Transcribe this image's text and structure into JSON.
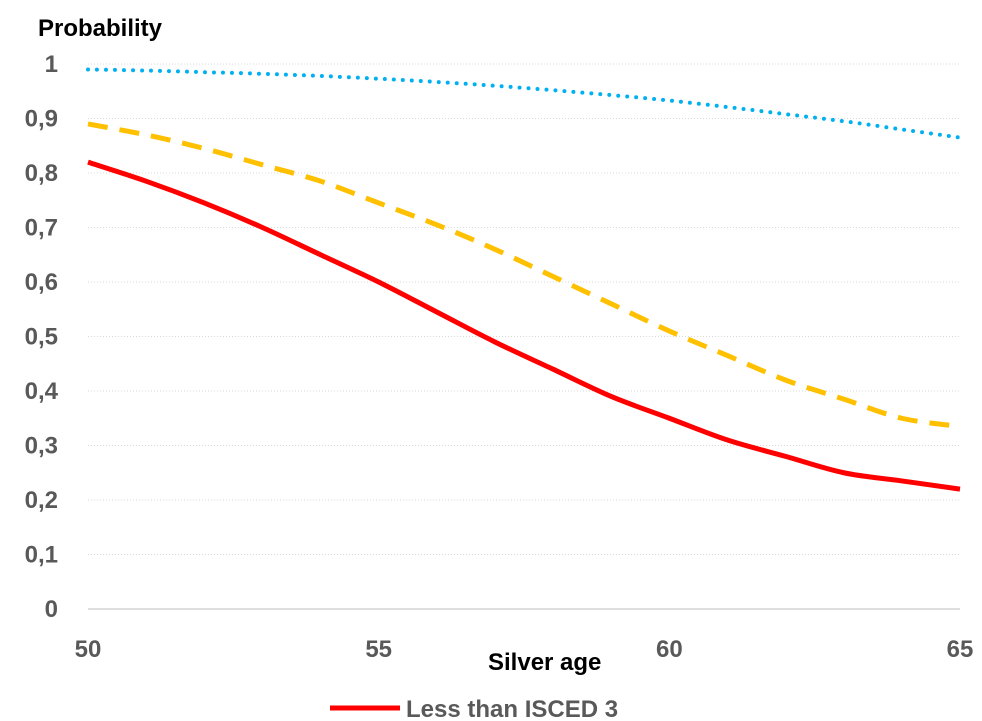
{
  "chart_data": {
    "type": "line",
    "xlabel": "Silver age",
    "ylabel": "Probability",
    "xlim": [
      50,
      65
    ],
    "ylim": [
      0,
      1
    ],
    "x_ticks": [
      "50",
      "55",
      "60",
      "65"
    ],
    "y_ticks": [
      "0",
      "0,1",
      "0,2",
      "0,3",
      "0,4",
      "0,5",
      "0,6",
      "0,7",
      "0,8",
      "0,9",
      "1"
    ],
    "grid": true,
    "legend_position": "bottom",
    "x": [
      50,
      51,
      52,
      53,
      54,
      55,
      56,
      57,
      58,
      59,
      60,
      61,
      62,
      63,
      64,
      65
    ],
    "series": [
      {
        "name": "Less than ISCED 3",
        "color": "#ff0000",
        "style": "solid",
        "values": [
          0.82,
          0.785,
          0.745,
          0.7,
          0.65,
          0.6,
          0.545,
          0.49,
          0.44,
          0.39,
          0.35,
          0.31,
          0.28,
          0.25,
          0.235,
          0.22
        ]
      },
      {
        "color": "#ffc000",
        "style": "dashed",
        "values": [
          0.89,
          0.87,
          0.845,
          0.815,
          0.785,
          0.745,
          0.705,
          0.66,
          0.61,
          0.56,
          0.51,
          0.465,
          0.42,
          0.385,
          0.35,
          0.335
        ]
      },
      {
        "color": "#00b0f0",
        "style": "dotted",
        "values": [
          0.99,
          0.988,
          0.985,
          0.982,
          0.978,
          0.973,
          0.967,
          0.96,
          0.952,
          0.943,
          0.933,
          0.921,
          0.908,
          0.895,
          0.88,
          0.865
        ]
      }
    ]
  }
}
